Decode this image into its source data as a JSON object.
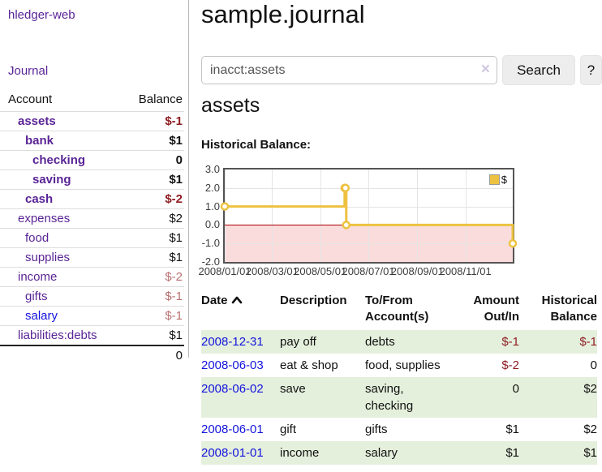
{
  "app": {
    "title": "hledger-web"
  },
  "sidebar": {
    "journal_link": "Journal",
    "accounts_table": {
      "account_header": "Account",
      "balance_header": "Balance",
      "rows": [
        {
          "name": "assets",
          "level": 1,
          "bold": true,
          "balance": "$-1",
          "balance_style": "neg-strong",
          "link_color": "purple"
        },
        {
          "name": "bank",
          "level": 2,
          "bold": true,
          "balance": "$1",
          "balance_style": "normal",
          "link_color": "purple"
        },
        {
          "name": "checking",
          "level": 3,
          "bold": true,
          "balance": "0",
          "balance_style": "normal",
          "link_color": "purple"
        },
        {
          "name": "saving",
          "level": 3,
          "bold": true,
          "balance": "$1",
          "balance_style": "normal",
          "link_color": "purple"
        },
        {
          "name": "cash",
          "level": 2,
          "bold": true,
          "balance": "$-2",
          "balance_style": "neg-strong",
          "link_color": "purple"
        },
        {
          "name": "expenses",
          "level": 1,
          "bold": false,
          "balance": "$2",
          "balance_style": "normal",
          "link_color": "purple"
        },
        {
          "name": "food",
          "level": 2,
          "bold": false,
          "balance": "$1",
          "balance_style": "normal",
          "link_color": "purple"
        },
        {
          "name": "supplies",
          "level": 2,
          "bold": false,
          "balance": "$1",
          "balance_style": "normal",
          "link_color": "purple"
        },
        {
          "name": "income",
          "level": 1,
          "bold": false,
          "balance": "$-2",
          "balance_style": "neg-soft",
          "link_color": "purple"
        },
        {
          "name": "gifts",
          "level": 2,
          "bold": false,
          "balance": "$-1",
          "balance_style": "neg-soft",
          "link_color": "purple"
        },
        {
          "name": "salary",
          "level": 2,
          "bold": false,
          "balance": "$-1",
          "balance_style": "neg-soft",
          "link_color": "blue"
        },
        {
          "name": "liabilities:debts",
          "level": 1,
          "bold": false,
          "balance": "$1",
          "balance_style": "normal",
          "link_color": "purple"
        }
      ],
      "total": "0"
    }
  },
  "header": {
    "title": "sample.journal"
  },
  "search": {
    "value": "inacct:assets",
    "clear_icon": "×",
    "button_label": "Search",
    "help_label": "?"
  },
  "account_page": {
    "title": "assets",
    "chart_label": "Historical Balance:"
  },
  "chart_data": {
    "type": "line",
    "step": true,
    "title": "Historical Balance:",
    "series": [
      {
        "name": "$",
        "points": [
          {
            "date": "2008-01-01",
            "value": 1
          },
          {
            "date": "2008-06-01",
            "value": 2
          },
          {
            "date": "2008-06-02",
            "value": 2
          },
          {
            "date": "2008-06-03",
            "value": 0
          },
          {
            "date": "2008-12-31",
            "value": -1
          }
        ]
      }
    ],
    "x_range": [
      "2008-01-01",
      "2008-12-31"
    ],
    "ylim": [
      -2,
      3
    ],
    "yticks": [
      {
        "label": "3.0",
        "value": 3
      },
      {
        "label": "2.0",
        "value": 2
      },
      {
        "label": "1.0",
        "value": 1
      },
      {
        "label": "0.0",
        "value": 0
      },
      {
        "label": "-1.0",
        "value": -1
      },
      {
        "label": "-2.0",
        "value": -2
      }
    ],
    "xticks": [
      {
        "label": "2008/01/01",
        "date": "2008-01-01"
      },
      {
        "label": "2008/03/01",
        "date": "2008-03-01"
      },
      {
        "label": "2008/05/01",
        "date": "2008-05-01"
      },
      {
        "label": "2008/07/01",
        "date": "2008-07-01"
      },
      {
        "label": "2008/09/01",
        "date": "2008-09-01"
      },
      {
        "label": "2008/11/01",
        "date": "2008-11-01"
      }
    ],
    "legend": {
      "label": "$",
      "position": "top-right"
    },
    "grid": true,
    "negative_region_shaded": true,
    "colors": {
      "line": "#edc240",
      "marker_fill": "#ffffff",
      "negative_fill": "#fbdcdc",
      "zero_line": "#a80000",
      "border": "#545454",
      "gridline": "#e4e4e4"
    }
  },
  "register_table": {
    "columns": [
      {
        "label": "Date",
        "align": "left",
        "sorted_ascending": true
      },
      {
        "label": "Description",
        "align": "left"
      },
      {
        "label": "To/From\nAccount(s)",
        "align": "left"
      },
      {
        "label": "Amount\nOut/In",
        "align": "right"
      },
      {
        "label": "Historical\nBalance",
        "align": "right"
      }
    ],
    "rows": [
      {
        "date": "2008-12-31",
        "description": "pay off",
        "accounts": "debts",
        "amount": "$-1",
        "amount_negative": true,
        "balance": "$-1",
        "balance_negative": true,
        "striped": true
      },
      {
        "date": "2008-06-03",
        "description": "eat & shop",
        "accounts": "food, supplies",
        "amount": "$-2",
        "amount_negative": true,
        "balance": "0",
        "balance_negative": false,
        "striped": false
      },
      {
        "date": "2008-06-02",
        "description": "save",
        "accounts": "saving,\nchecking",
        "amount": "0",
        "amount_negative": false,
        "balance": "$2",
        "balance_negative": false,
        "striped": true
      },
      {
        "date": "2008-06-01",
        "description": "gift",
        "accounts": "gifts",
        "amount": "$1",
        "amount_negative": false,
        "balance": "$2",
        "balance_negative": false,
        "striped": false
      },
      {
        "date": "2008-01-01",
        "description": "income",
        "accounts": "salary",
        "amount": "$1",
        "amount_negative": false,
        "balance": "$1",
        "balance_negative": false,
        "striped": true
      }
    ]
  }
}
